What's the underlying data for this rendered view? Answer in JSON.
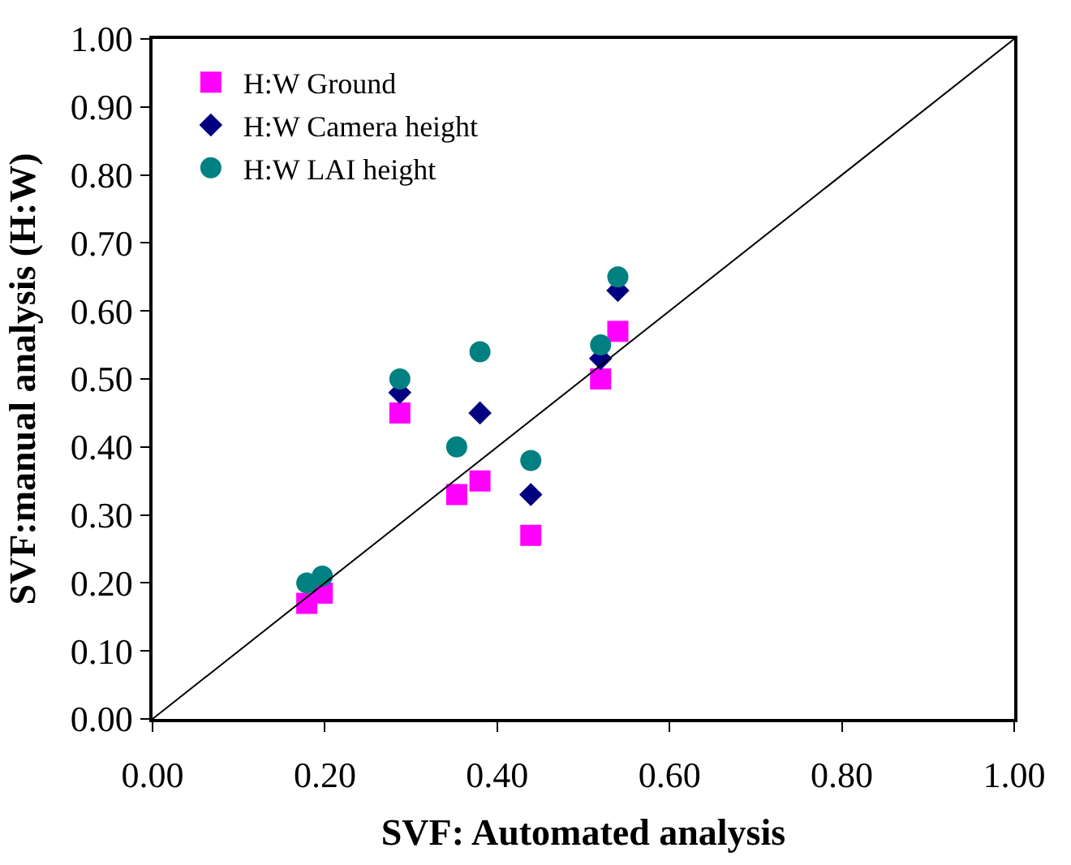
{
  "chart_data": {
    "type": "scatter",
    "xlabel": "SVF: Automated analysis",
    "ylabel": "SVF:manual analysis (H:W)",
    "x": [
      0.179,
      0.197,
      0.287,
      0.353,
      0.38,
      0.439,
      0.52,
      0.54
    ],
    "series": [
      {
        "name": "H:W Ground",
        "color": "#ff00ff",
        "marker": "square",
        "values": [
          0.17,
          0.185,
          0.45,
          0.33,
          0.35,
          0.27,
          0.5,
          0.57
        ]
      },
      {
        "name": "H:W Camera height",
        "color": "#000080",
        "marker": "diamond",
        "values": [
          null,
          null,
          0.48,
          null,
          0.45,
          0.33,
          0.53,
          0.63
        ]
      },
      {
        "name": "H:W LAI height",
        "color": "#008080",
        "marker": "circle",
        "values": [
          0.2,
          0.21,
          0.5,
          0.4,
          0.54,
          0.38,
          0.55,
          0.65
        ]
      },
      {
        "type": "line",
        "color": "#000000",
        "x": [
          0,
          1
        ],
        "values": [
          0,
          1
        ]
      }
    ],
    "xlim": [
      0,
      1
    ],
    "ylim": [
      0,
      1
    ],
    "xticks": [
      {
        "value": 0,
        "label": "0.00"
      },
      {
        "value": 0.2,
        "label": "0.20"
      },
      {
        "value": 0.4,
        "label": "0.40"
      },
      {
        "value": 0.6,
        "label": "0.60"
      },
      {
        "value": 0.8,
        "label": "0.80"
      },
      {
        "value": 1,
        "label": "1.00"
      }
    ],
    "yticks": [
      {
        "value": 0,
        "label": "0.00"
      },
      {
        "value": 0.1,
        "label": "0.10"
      },
      {
        "value": 0.2,
        "label": "0.20"
      },
      {
        "value": 0.3,
        "label": "0.30"
      },
      {
        "value": 0.4,
        "label": "0.40"
      },
      {
        "value": 0.5,
        "label": "0.50"
      },
      {
        "value": 0.6,
        "label": "0.60"
      },
      {
        "value": 0.7,
        "label": "0.70"
      },
      {
        "value": 0.8,
        "label": "0.80"
      },
      {
        "value": 0.9,
        "label": "0.90"
      },
      {
        "value": 1,
        "label": "1.00"
      }
    ],
    "legend": "top left"
  }
}
